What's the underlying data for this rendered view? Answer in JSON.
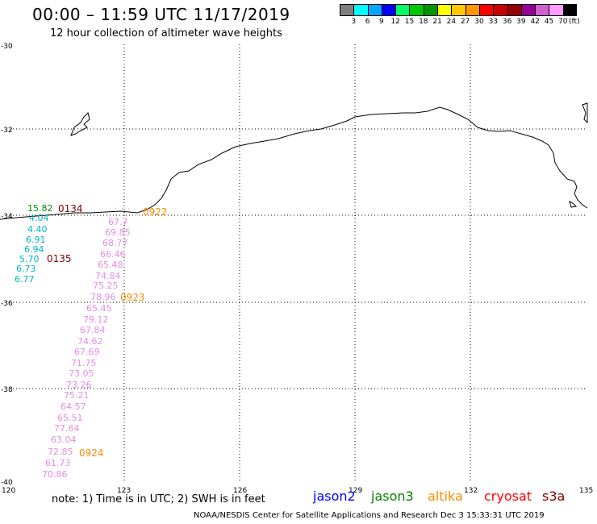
{
  "header": {
    "title": "00:00 – 11:59 UTC 11/17/2019",
    "subtitle": "12 hour collection of altimeter wave heights"
  },
  "color_scale": {
    "unit": "(ft)",
    "labels": [
      "3",
      "6",
      "9",
      "12",
      "15",
      "18",
      "21",
      "24",
      "27",
      "30",
      "33",
      "36",
      "39",
      "42",
      "45",
      "70"
    ],
    "colors": [
      "#7f7f7f",
      "#00ffff",
      "#00a5ff",
      "#0000ff",
      "#00ff66",
      "#00c800",
      "#009600",
      "#ffff00",
      "#ffc800",
      "#ff9600",
      "#ff0000",
      "#c80000",
      "#960000",
      "#960096",
      "#d060d0",
      "#ff9bff",
      "#000000"
    ]
  },
  "axes": {
    "lat_labels": [
      "-30",
      "-32",
      "-34",
      "-36",
      "-38",
      "-40"
    ],
    "lon_labels": [
      "120",
      "123",
      "126",
      "129",
      "132",
      "135"
    ]
  },
  "overlay": {
    "cyan_values": [
      "4.04",
      "4.40",
      "6.91",
      "6.94",
      "5.70",
      "6.73",
      "6.77"
    ],
    "green_values": [
      "15.82"
    ],
    "pink_values": [
      "67.7",
      "69.85",
      "68.77",
      "66.46",
      "65.48",
      "74.84",
      "75.25",
      "78.96",
      "65.45",
      "79.12",
      "67.84",
      "74.62",
      "67.69",
      "71.75",
      "73.05",
      "73.26",
      "75.21",
      "64.57",
      "65.51",
      "77.64",
      "63.04",
      "72.85",
      "61.73",
      "70.86"
    ],
    "time_labels": [
      {
        "text": "0134",
        "color": "#800000"
      },
      {
        "text": "0135",
        "color": "#800000"
      },
      {
        "text": "0922",
        "color": "#ff8c00"
      },
      {
        "text": "0923",
        "color": "#ff8c00"
      },
      {
        "text": "0924",
        "color": "#ff8c00"
      }
    ]
  },
  "footer": {
    "note": "note: 1) Time is in UTC; 2) SWH is in feet",
    "satellites": [
      {
        "name": "jason2",
        "color": "#0000ff"
      },
      {
        "name": "jason3",
        "color": "#008000"
      },
      {
        "name": "altika",
        "color": "#ff8c00"
      },
      {
        "name": "cryosat",
        "color": "#ff0000"
      },
      {
        "name": "s3a",
        "color": "#800000"
      }
    ],
    "credit": "NOAA/NESDIS Center for Satellite Applications and Research    Dec  3 15:33:31 UTC 2019"
  }
}
